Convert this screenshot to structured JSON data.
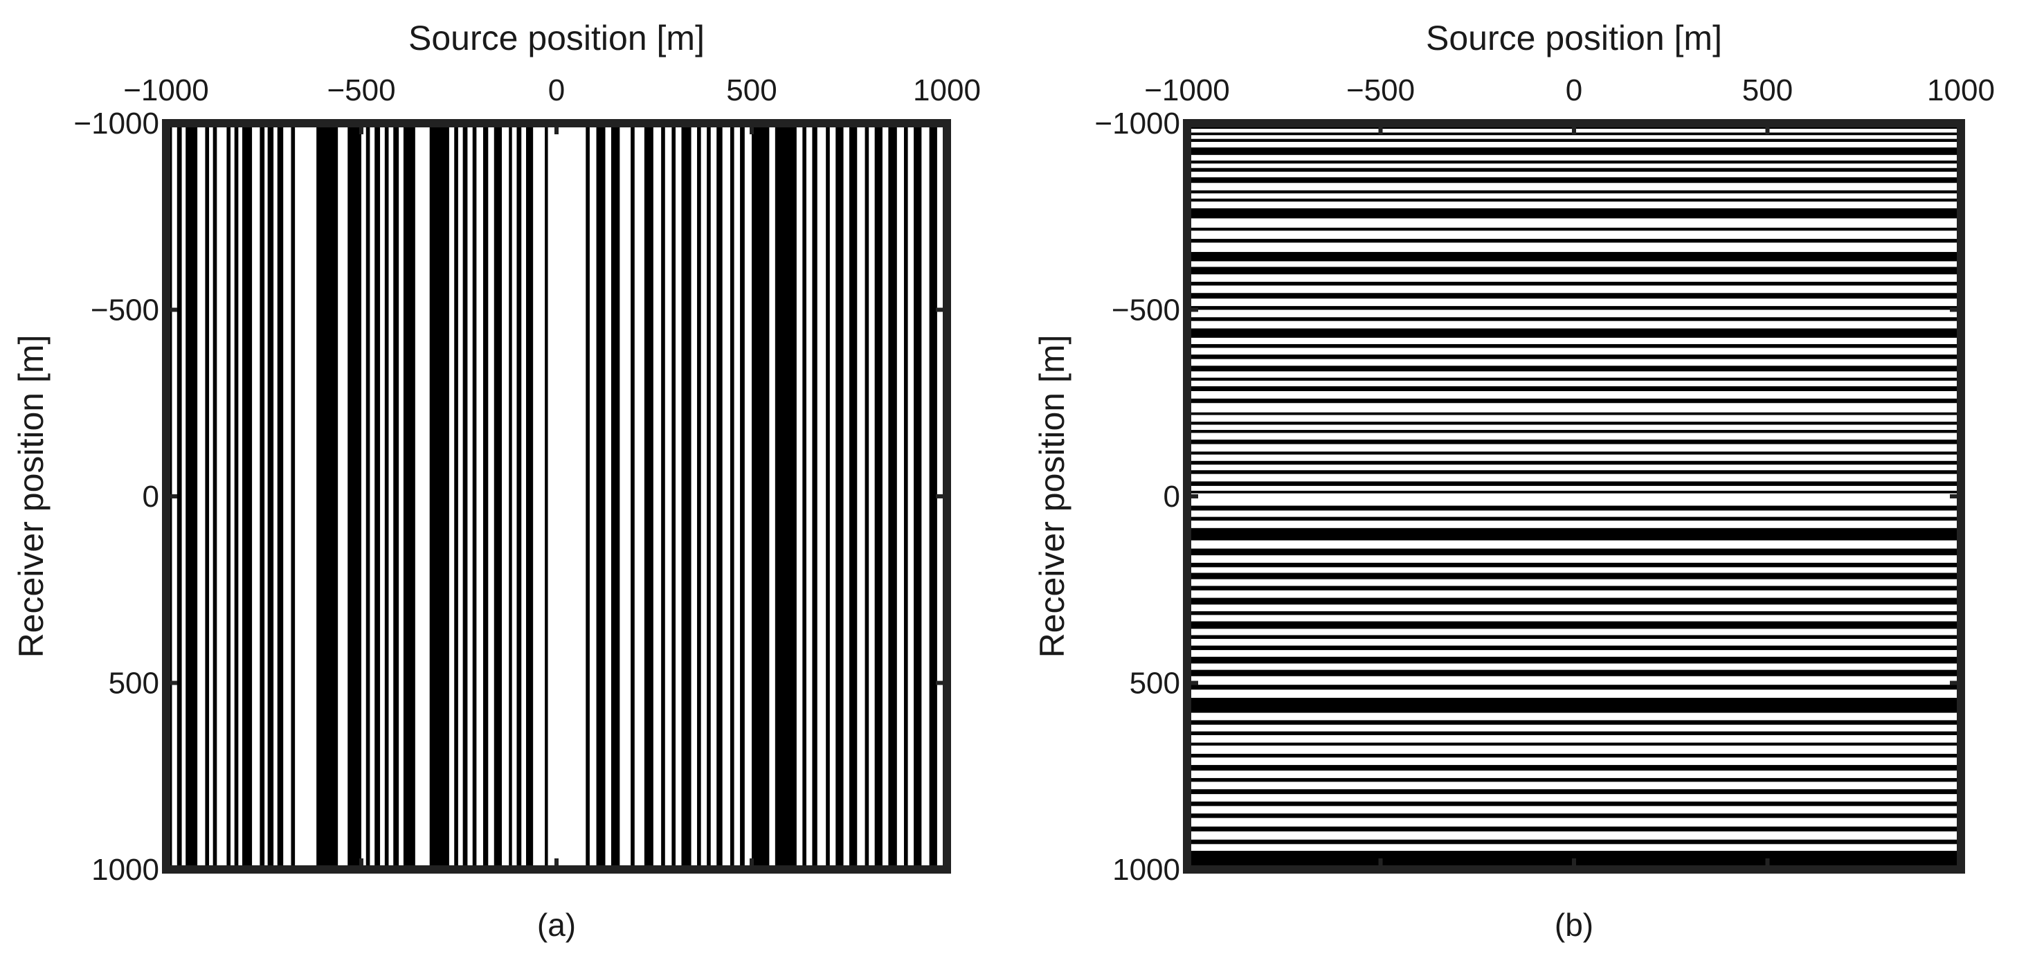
{
  "chart_data": [
    {
      "type": "heatmap",
      "panel_label": "(a)",
      "xlabel": "Source position [m]",
      "ylabel": "Receiver position [m]",
      "xlabel_position": "top",
      "xlim": [
        -1000,
        1000
      ],
      "ylim": [
        -1000,
        1000
      ],
      "y_reversed": true,
      "xticks": [
        -1000,
        -500,
        0,
        500,
        1000
      ],
      "yticks": [
        -1000,
        -500,
        0,
        500,
        1000
      ],
      "xtick_labels": [
        "−1000",
        "−500",
        "0",
        "500",
        "1000"
      ],
      "ytick_labels": [
        "−1000",
        "−500",
        "0",
        "500",
        "1000"
      ],
      "stripe_orientation": "vertical",
      "description": "binary mask: black columns = active source positions",
      "black_bands": [
        [
          -1000,
          -985
        ],
        [
          -972,
          -960
        ],
        [
          -950,
          -920
        ],
        [
          -900,
          -890
        ],
        [
          -880,
          -870
        ],
        [
          -845,
          -835
        ],
        [
          -825,
          -815
        ],
        [
          -805,
          -780
        ],
        [
          -760,
          -748
        ],
        [
          -740,
          -725
        ],
        [
          -715,
          -700
        ],
        [
          -680,
          -670
        ],
        [
          -615,
          -560
        ],
        [
          -535,
          -500
        ],
        [
          -488,
          -478
        ],
        [
          -466,
          -452
        ],
        [
          -440,
          -430
        ],
        [
          -418,
          -404
        ],
        [
          -392,
          -362
        ],
        [
          -325,
          -275
        ],
        [
          -262,
          -252
        ],
        [
          -240,
          -228
        ],
        [
          -215,
          -205
        ],
        [
          -188,
          -175
        ],
        [
          -160,
          -140
        ],
        [
          -122,
          -114
        ],
        [
          -102,
          -90
        ],
        [
          -78,
          -60
        ],
        [
          -30,
          -22
        ],
        [
          75,
          85
        ],
        [
          102,
          125
        ],
        [
          140,
          162
        ],
        [
          190,
          200
        ],
        [
          225,
          248
        ],
        [
          268,
          278
        ],
        [
          295,
          305
        ],
        [
          320,
          345
        ],
        [
          360,
          370
        ],
        [
          385,
          395
        ],
        [
          410,
          425
        ],
        [
          445,
          455
        ],
        [
          470,
          482
        ],
        [
          500,
          545
        ],
        [
          560,
          615
        ],
        [
          630,
          640
        ],
        [
          655,
          668
        ],
        [
          690,
          700
        ],
        [
          715,
          735
        ],
        [
          750,
          770
        ],
        [
          790,
          800
        ],
        [
          815,
          835
        ],
        [
          850,
          872
        ],
        [
          890,
          900
        ],
        [
          915,
          935
        ],
        [
          955,
          975
        ]
      ]
    },
    {
      "type": "heatmap",
      "panel_label": "(b)",
      "xlabel": "Source position [m]",
      "ylabel": "Receiver position [m]",
      "xlabel_position": "top",
      "xlim": [
        -1000,
        1000
      ],
      "ylim": [
        -1000,
        1000
      ],
      "y_reversed": true,
      "xticks": [
        -1000,
        -500,
        0,
        500,
        1000
      ],
      "yticks": [
        -1000,
        -500,
        0,
        500,
        1000
      ],
      "xtick_labels": [
        "−1000",
        "−500",
        "0",
        "500",
        "1000"
      ],
      "ytick_labels": [
        "−1000",
        "−500",
        "0",
        "500",
        "1000"
      ],
      "stripe_orientation": "horizontal",
      "description": "binary mask: black rows = active receiver positions",
      "black_bands": [
        [
          -1000,
          -985
        ],
        [
          -975,
          -968
        ],
        [
          -958,
          -950
        ],
        [
          -935,
          -915
        ],
        [
          -900,
          -892
        ],
        [
          -880,
          -870
        ],
        [
          -855,
          -840
        ],
        [
          -820,
          -812
        ],
        [
          -798,
          -790
        ],
        [
          -772,
          -745
        ],
        [
          -720,
          -712
        ],
        [
          -690,
          -680
        ],
        [
          -655,
          -630
        ],
        [
          -615,
          -595
        ],
        [
          -575,
          -565
        ],
        [
          -545,
          -530
        ],
        [
          -510,
          -500
        ],
        [
          -480,
          -470
        ],
        [
          -450,
          -425
        ],
        [
          -408,
          -398
        ],
        [
          -380,
          -368
        ],
        [
          -350,
          -335
        ],
        [
          -318,
          -310
        ],
        [
          -295,
          -282
        ],
        [
          -262,
          -250
        ],
        [
          -225,
          -218
        ],
        [
          -200,
          -192
        ],
        [
          -178,
          -170
        ],
        [
          -152,
          -140
        ],
        [
          -120,
          -112
        ],
        [
          -95,
          -85
        ],
        [
          -70,
          -60
        ],
        [
          -40,
          -28
        ],
        [
          -15,
          -8
        ],
        [
          25,
          38
        ],
        [
          55,
          65
        ],
        [
          85,
          118
        ],
        [
          140,
          158
        ],
        [
          178,
          190
        ],
        [
          205,
          222
        ],
        [
          240,
          252
        ],
        [
          272,
          290
        ],
        [
          308,
          318
        ],
        [
          335,
          355
        ],
        [
          372,
          382
        ],
        [
          400,
          412
        ],
        [
          430,
          448
        ],
        [
          465,
          482
        ],
        [
          505,
          518
        ],
        [
          540,
          580
        ],
        [
          600,
          612
        ],
        [
          630,
          640
        ],
        [
          660,
          668
        ],
        [
          690,
          700
        ],
        [
          720,
          735
        ],
        [
          755,
          765
        ],
        [
          785,
          798
        ],
        [
          818,
          830
        ],
        [
          850,
          862
        ],
        [
          885,
          898
        ],
        [
          920,
          932
        ],
        [
          950,
          1000
        ]
      ]
    }
  ]
}
